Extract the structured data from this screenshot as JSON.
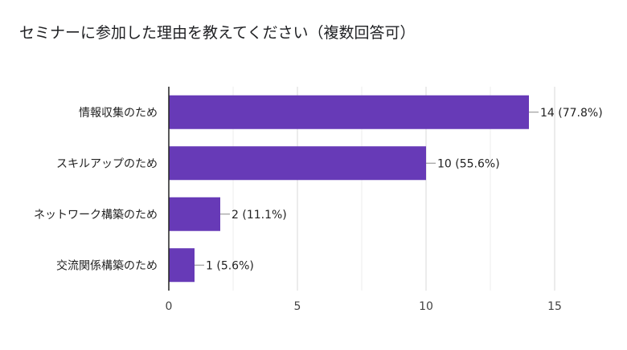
{
  "chart_data": {
    "type": "bar",
    "orientation": "horizontal",
    "title": "セミナーに参加した理由を教えてください（複数回答可）",
    "categories": [
      "情報収集のため",
      "スキルアップのため",
      "ネットワーク構築のため",
      "交流関係構築のため"
    ],
    "values": [
      14,
      10,
      2,
      1
    ],
    "data_labels": [
      "14 (77.8%)",
      "10 (55.6%)",
      "2 (11.1%)",
      "1 (5.6%)"
    ],
    "xlim": [
      0,
      15
    ],
    "xticks": [
      0,
      5,
      10,
      15
    ],
    "bar_color": "#673ab7",
    "grid": true,
    "legend": "none"
  }
}
